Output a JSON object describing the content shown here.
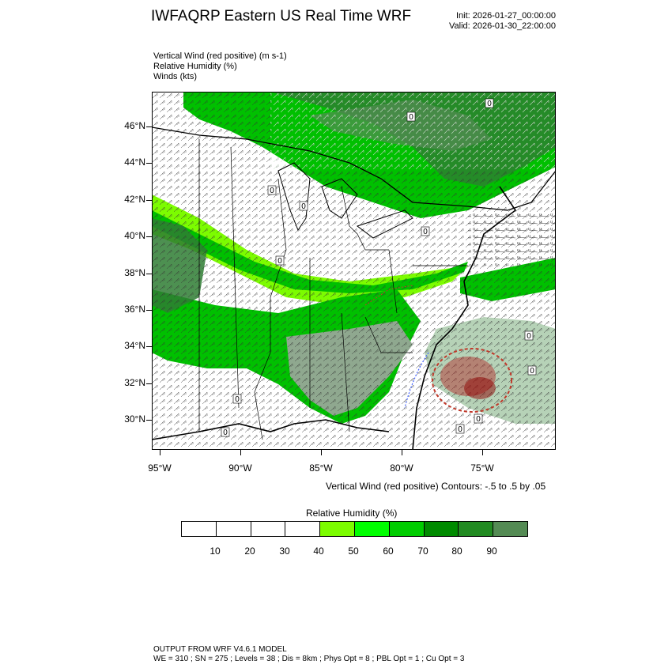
{
  "header": {
    "title": "IWFAQRP Eastern US Real Time WRF",
    "init": "Init: 2026-01-27_00:00:00",
    "valid": "Valid: 2026-01-30_22:00:00"
  },
  "fields": {
    "line1": "Vertical Wind (red positive)   (m s-1)",
    "line2": "Relative Humidity   (%)",
    "line3": "Winds   (kts)"
  },
  "map": {
    "lat_labels": [
      "46°N",
      "44°N",
      "42°N",
      "40°N",
      "38°N",
      "36°N",
      "34°N",
      "32°N",
      "30°N"
    ],
    "lon_labels": [
      "95°W",
      "90°W",
      "85°W",
      "80°W",
      "75°W"
    ],
    "contour_labels": [
      "0",
      "0",
      "0",
      "0",
      "0",
      "0",
      "0",
      "0",
      "0",
      "0",
      "0",
      "0"
    ]
  },
  "contour_note": "Vertical Wind (red positive) Contours: -.5 to .5 by .05",
  "colorbar": {
    "title": "Relative Humidity   (%)",
    "labels": [
      "10",
      "20",
      "30",
      "40",
      "50",
      "60",
      "70",
      "80",
      "90"
    ],
    "colors": [
      "#ffffff",
      "#ffffff",
      "#ffffff",
      "#ffffff",
      "#7cfc00",
      "#00ff00",
      "#00cd00",
      "#008b00",
      "#228b22",
      "#548b54"
    ]
  },
  "footer": {
    "line1": "OUTPUT FROM WRF V4.6.1 MODEL",
    "line2": "WE = 310 ; SN = 275 ; Levels = 38 ; Dis = 8km ; Phys Opt = 8 ; PBL Opt = 1 ; Cu Opt = 3"
  }
}
